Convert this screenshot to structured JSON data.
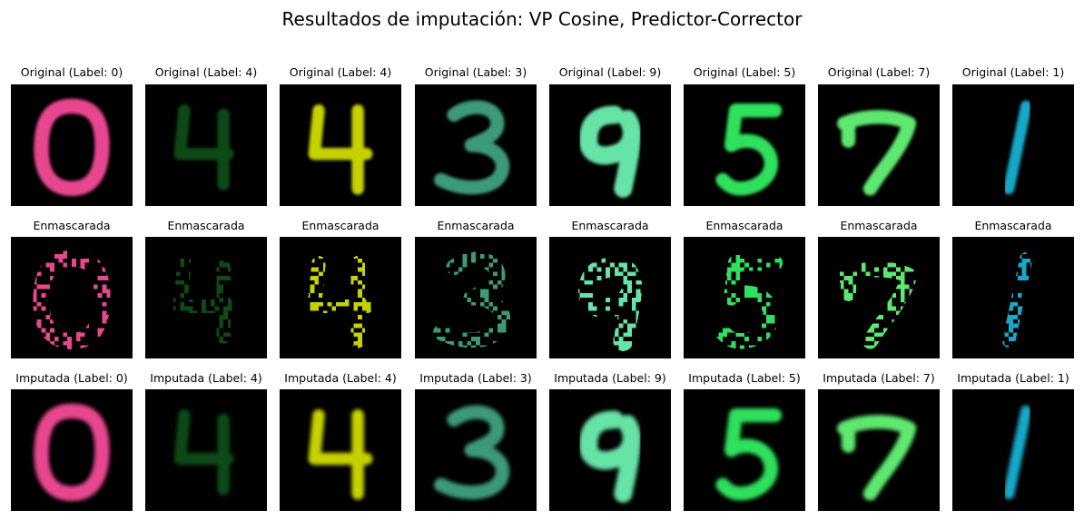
{
  "figure": {
    "title": "Resultados de imputación: VP Cosine, Predictor-Corrector"
  },
  "rows": [
    {
      "kind": "original",
      "titles": [
        "Original (Label: 0)",
        "Original (Label: 4)",
        "Original (Label: 4)",
        "Original (Label: 3)",
        "Original (Label: 9)",
        "Original (Label: 5)",
        "Original (Label: 7)",
        "Original (Label: 1)"
      ]
    },
    {
      "kind": "masked",
      "titles": [
        "Enmascarada",
        "Enmascarada",
        "Enmascarada",
        "Enmascarada",
        "Enmascarada",
        "Enmascarada",
        "Enmascarada",
        "Enmascarada"
      ]
    },
    {
      "kind": "imputed",
      "titles": [
        "Imputada (Label: 0)",
        "Imputada (Label: 4)",
        "Imputada (Label: 4)",
        "Imputada (Label: 3)",
        "Imputada (Label: 9)",
        "Imputada (Label: 5)",
        "Imputada (Label: 7)",
        "Imputada (Label: 1)"
      ]
    }
  ],
  "digits": [
    {
      "label": "0",
      "color": "#e8478f"
    },
    {
      "label": "4",
      "color": "#0f4a14"
    },
    {
      "label": "4",
      "color": "#c6d200"
    },
    {
      "label": "3",
      "color": "#3c9a78"
    },
    {
      "label": "9",
      "color": "#66e3a6"
    },
    {
      "label": "5",
      "color": "#2ee05c"
    },
    {
      "label": "7",
      "color": "#5ee870"
    },
    {
      "label": "1",
      "color": "#15a8c8"
    }
  ]
}
